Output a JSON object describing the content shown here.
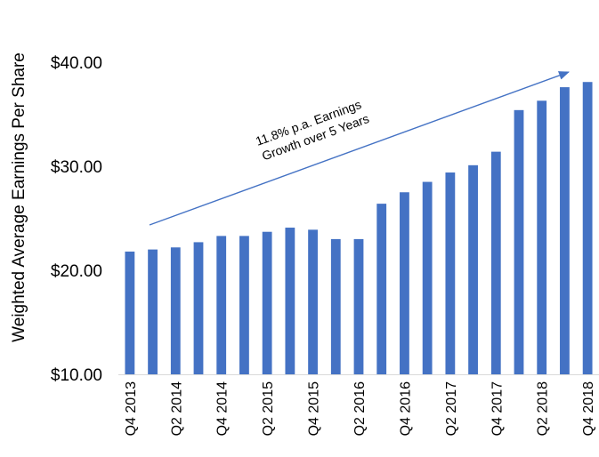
{
  "chart_data": {
    "type": "bar",
    "ylabel": "Weighted Average Earnings Per Share",
    "ylim": [
      10,
      40
    ],
    "yticks": [
      "$10.00",
      "$20.00",
      "$30.00",
      "$40.00"
    ],
    "ytick_values": [
      10,
      20,
      30,
      40
    ],
    "categories": [
      "Q4 2013",
      "Q1 2014",
      "Q2 2014",
      "Q3 2014",
      "Q4 2014",
      "Q1 2015",
      "Q2 2015",
      "Q3 2015",
      "Q4 2015",
      "Q1 2016",
      "Q2 2016",
      "Q3 2016",
      "Q4 2016",
      "Q1 2017",
      "Q2 2017",
      "Q3 2017",
      "Q4 2017",
      "Q1 2018",
      "Q2 2018",
      "Q3 2018",
      "Q4 2018"
    ],
    "xtick_labels": [
      "Q4 2013",
      "",
      "Q2 2014",
      "",
      "Q4 2014",
      "",
      "Q2 2015",
      "",
      "Q4 2015",
      "",
      "Q2 2016",
      "",
      "Q4 2016",
      "",
      "Q2 2017",
      "",
      "Q4 2017",
      "",
      "Q2 2018",
      "",
      "Q4 2018"
    ],
    "values": [
      21.8,
      22.0,
      22.2,
      22.7,
      23.3,
      23.3,
      23.7,
      24.1,
      23.9,
      23.0,
      23.0,
      26.4,
      27.5,
      28.5,
      29.4,
      30.1,
      31.4,
      35.4,
      36.3,
      37.6,
      38.1
    ],
    "color": "#4472C4",
    "grid": false,
    "legend": "none",
    "annotation": {
      "line1": "11.8% p.a. Earnings",
      "line2": "Growth over 5 Years",
      "arrow_color": "#4472C4"
    }
  }
}
